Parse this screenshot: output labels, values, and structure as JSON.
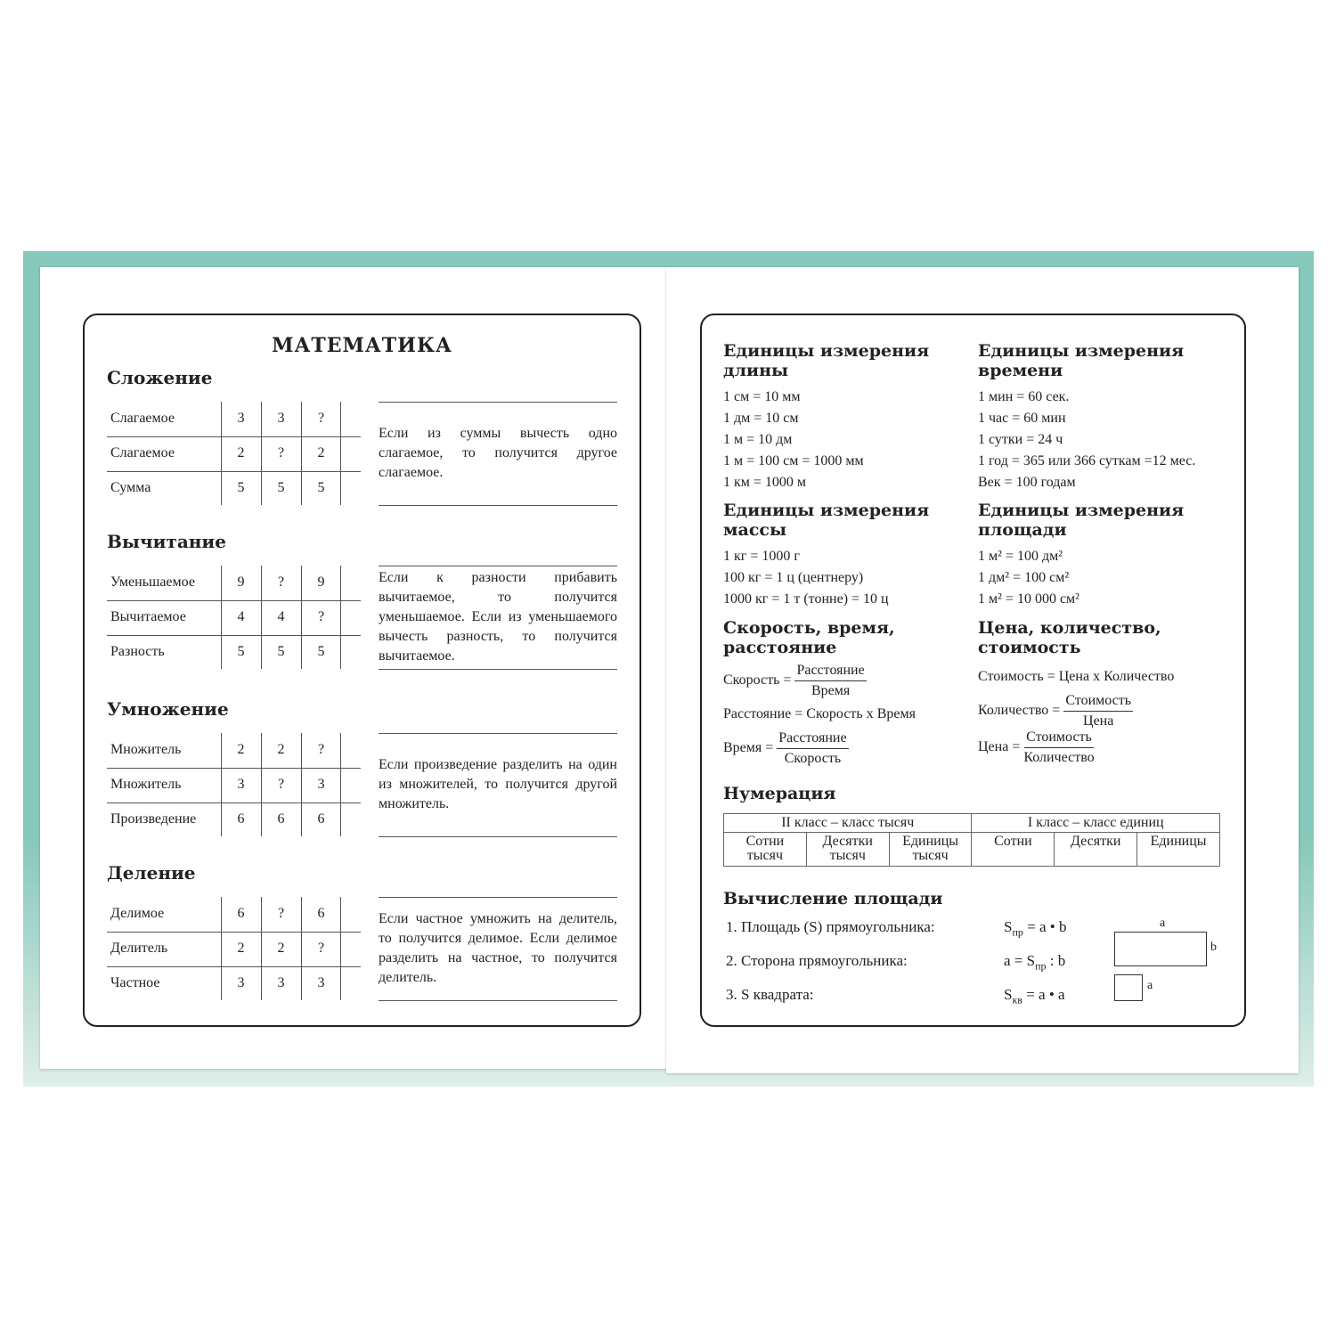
{
  "left": {
    "title": "МАТЕМАТИКА",
    "sections": [
      {
        "heading": "Сложение",
        "rows": [
          [
            "Слагаемое",
            3,
            3,
            "?"
          ],
          [
            "Слагаемое",
            2,
            "?",
            2
          ],
          [
            "Сумма",
            5,
            5,
            5
          ]
        ],
        "rule": "Если из суммы вычесть одно слагаемое, то получится другое слагаемое."
      },
      {
        "heading": "Вычитание",
        "rows": [
          [
            "Уменьшаемое",
            9,
            "?",
            9
          ],
          [
            "Вычитаемое",
            4,
            4,
            "?"
          ],
          [
            "Разность",
            5,
            5,
            5
          ]
        ],
        "rule": "Если к разности прибавить вычитаемое, то получится уменьшаемое. Если из уменьшаемого вычесть разность, то получится вычитаемое."
      },
      {
        "heading": "Умножение",
        "rows": [
          [
            "Множитель",
            2,
            2,
            "?"
          ],
          [
            "Множитель",
            3,
            "?",
            3
          ],
          [
            "Произведение",
            6,
            6,
            6
          ]
        ],
        "rule": "Если произведение разделить на один из множителей, то получится другой множитель."
      },
      {
        "heading": "Деление",
        "rows": [
          [
            "Делимое",
            6,
            "?",
            6
          ],
          [
            "Делитель",
            2,
            2,
            "?"
          ],
          [
            "Частное",
            3,
            3,
            3
          ]
        ],
        "rule": "Если частное умножить на делитель, то получится делимое. Если делимое разделить на частное, то получится делитель."
      }
    ]
  },
  "right": {
    "blocks": [
      {
        "heading": "Единицы измерения длины",
        "items": [
          {
            "text": "1 см = 10 мм"
          },
          {
            "text": "1 дм = 10 см"
          },
          {
            "text": "1 м = 10 дм"
          },
          {
            "text": "1 м = 100 см = 1000 мм"
          },
          {
            "text": "1 км = 1000 м"
          }
        ]
      },
      {
        "heading": "Единицы измерения времени",
        "items": [
          {
            "text": "1 мин = 60 сек."
          },
          {
            "text": "1 час = 60 мин"
          },
          {
            "text": "1 сутки = 24 ч"
          },
          {
            "text": "1 год = 365 или 366 суткам =12 мес."
          },
          {
            "text": "Век = 100 годам"
          }
        ]
      },
      {
        "heading": "Единицы измерения массы",
        "items": [
          {
            "text": "1 кг = 1000 г"
          },
          {
            "text": "100 кг = 1 ц (центнеру)"
          },
          {
            "text": "1000 кг = 1 т (тонне) = 10 ц"
          }
        ]
      },
      {
        "heading": "Единицы измерения площади",
        "items": [
          {
            "text": "1 м² = 100 дм²"
          },
          {
            "text": "1 дм² = 100 см²"
          },
          {
            "text": "1 м² = 10 000 см²"
          }
        ]
      },
      {
        "heading": "Скорость, время, расстояние",
        "items": [
          {
            "lhs": "Скорость =",
            "num": "Расстояние",
            "den": "Время"
          },
          {
            "text": "Расстояние = Скорость х Время"
          },
          {
            "lhs": "Время =",
            "num": "Расстояние",
            "den": "Скорость"
          }
        ]
      },
      {
        "heading": "Цена, количество, стоимость",
        "items": [
          {
            "text": "Стоимость = Цена х Количество"
          },
          {
            "lhs": "Количество =",
            "num": "Стоимость",
            "den": "Цена"
          },
          {
            "lhs": "Цена =",
            "num": "Стоимость",
            "den": "Количество"
          }
        ]
      }
    ],
    "numeration": {
      "heading": "Нумерация",
      "classes": [
        "II класс – класс тысяч",
        "I класс – класс единиц"
      ],
      "ranks": [
        "Сотни тысяч",
        "Десятки тысяч",
        "Единицы тысяч",
        "Сотни",
        "Десятки",
        "Единицы"
      ]
    },
    "area": {
      "heading": "Вычисление площади",
      "rows": [
        {
          "label": "1. Площадь (S) прямоугольника:",
          "formula": [
            {
              "text": "S"
            },
            {
              "sub": "пр"
            },
            {
              "text": " = a • b"
            }
          ]
        },
        {
          "label": "2. Сторона прямоугольника:",
          "formula": [
            {
              "text": "a = S"
            },
            {
              "sub": "пр"
            },
            {
              "text": " : b"
            }
          ]
        },
        {
          "label": "3. S квадрата:",
          "formula": [
            {
              "text": "S"
            },
            {
              "sub": "кв"
            },
            {
              "text": " = a • a"
            }
          ]
        }
      ],
      "diagram": {
        "rect_top": "a",
        "rect_side": "b",
        "square_side": "a"
      }
    }
  }
}
